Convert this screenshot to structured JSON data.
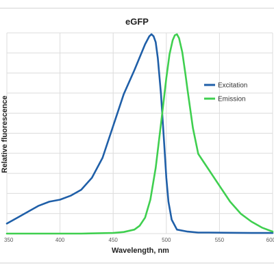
{
  "chart_data": {
    "type": "line",
    "title": "eGFP",
    "xlabel": "Wavelength, nm",
    "ylabel": "Relative fluorescence",
    "xlim": [
      350,
      600
    ],
    "ylim": [
      0,
      1.0
    ],
    "x_ticks": [
      "350",
      "400",
      "450",
      "500",
      "550",
      "600"
    ],
    "grid": true,
    "legend_position": "right",
    "series": [
      {
        "name": "Excitation",
        "color": "#1f5fa8",
        "x": [
          350,
          360,
          370,
          380,
          390,
          400,
          410,
          420,
          430,
          440,
          450,
          460,
          470,
          480,
          484,
          486,
          488,
          490,
          492,
          495,
          498,
          500,
          502,
          505,
          510,
          520,
          530,
          540,
          560,
          580,
          600
        ],
        "y": [
          0.05,
          0.08,
          0.11,
          0.14,
          0.16,
          0.17,
          0.19,
          0.22,
          0.28,
          0.38,
          0.54,
          0.7,
          0.82,
          0.95,
          0.99,
          1.0,
          0.99,
          0.96,
          0.88,
          0.7,
          0.45,
          0.28,
          0.16,
          0.07,
          0.02,
          0.01,
          0.005,
          0.005,
          0.004,
          0.003,
          0.003
        ]
      },
      {
        "name": "Emission",
        "color": "#3fcf4f",
        "x": [
          350,
          420,
          450,
          460,
          470,
          475,
          480,
          485,
          490,
          495,
          500,
          503,
          506,
          508,
          510,
          512,
          515,
          518,
          520,
          525,
          530,
          540,
          550,
          560,
          570,
          580,
          590,
          600
        ],
        "y": [
          0.0,
          0.0,
          0.003,
          0.008,
          0.02,
          0.04,
          0.08,
          0.17,
          0.33,
          0.55,
          0.78,
          0.9,
          0.97,
          0.995,
          1.0,
          0.98,
          0.91,
          0.8,
          0.72,
          0.53,
          0.4,
          0.32,
          0.24,
          0.16,
          0.1,
          0.06,
          0.03,
          0.01
        ]
      }
    ]
  }
}
